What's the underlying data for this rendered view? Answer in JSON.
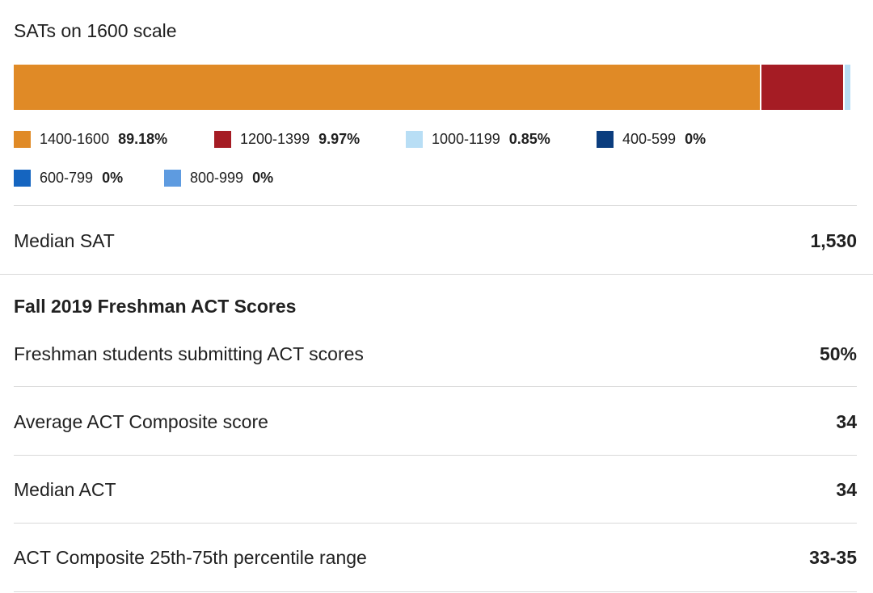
{
  "chart_data": {
    "type": "bar",
    "title": "SATs on 1600 scale",
    "orientation": "horizontal-stacked",
    "categories": [
      "1400-1600",
      "1200-1399",
      "1000-1199",
      "400-599",
      "600-799",
      "800-999"
    ],
    "values": [
      89.18,
      9.97,
      0.85,
      0,
      0,
      0
    ],
    "value_labels": [
      "89.18%",
      "9.97%",
      "0.85%",
      "0%",
      "0%",
      "0%"
    ],
    "colors": [
      "#E08A26",
      "#A51C24",
      "#B8DEF5",
      "#0B3D7E",
      "#1565C0",
      "#5E9BE0"
    ],
    "legend": "bottom"
  },
  "stats": {
    "median_sat": {
      "label": "Median SAT",
      "value": "1,530"
    },
    "act_section_title": "Fall 2019 Freshman ACT Scores",
    "act_submitting": {
      "label": "Freshman students submitting ACT scores",
      "value": "50%"
    },
    "act_average": {
      "label": "Average ACT Composite score",
      "value": "34"
    },
    "act_median": {
      "label": "Median ACT",
      "value": "34"
    },
    "act_range": {
      "label": "ACT Composite 25th-75th percentile range",
      "value": "33-35"
    }
  }
}
